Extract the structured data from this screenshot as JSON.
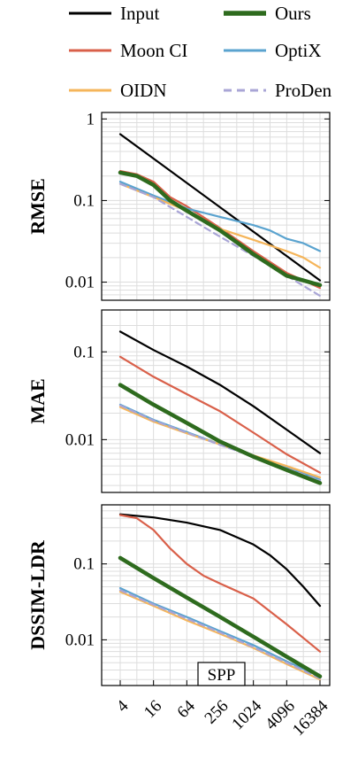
{
  "chart_data": {
    "type": "line",
    "x_scale": "log2",
    "x": [
      4,
      16,
      64,
      256,
      1024,
      4096,
      16384
    ],
    "xtick_labels": [
      "4",
      "16",
      "64",
      "256",
      "1024",
      "4096",
      "16384"
    ],
    "xlabel": "SPP",
    "grid": true,
    "legend": {
      "placement": "top",
      "entries": [
        "Input",
        "Ours",
        "Moon CI",
        "OptiX",
        "OIDN",
        "ProDen"
      ]
    },
    "series_styles": [
      {
        "name": "Input",
        "color": "#000000",
        "dash": "solid",
        "thick": false
      },
      {
        "name": "Ours",
        "color": "#2e6b1e",
        "dash": "solid",
        "thick": true
      },
      {
        "name": "Moon CI",
        "color": "#d9604a",
        "dash": "solid",
        "thick": false
      },
      {
        "name": "OptiX",
        "color": "#5aa3cf",
        "dash": "solid",
        "thick": false
      },
      {
        "name": "OIDN",
        "color": "#f5b55a",
        "dash": "solid",
        "thick": false
      },
      {
        "name": "ProDen",
        "color": "#a9a5d6",
        "dash": "dashed",
        "thick": false
      }
    ],
    "panels": [
      {
        "ylabel": "RMSE",
        "y_scale": "log",
        "ylim": [
          0.006,
          1.2
        ],
        "yticks": [
          1,
          0.1,
          0.01
        ],
        "ytick_labels": [
          "1",
          "0.1",
          "0.01"
        ],
        "series": [
          {
            "name": "Input",
            "x": [
              4,
              16384
            ],
            "values": [
              0.65,
              0.0105
            ]
          },
          {
            "name": "Moon CI",
            "x": [
              4,
              8,
              16,
              32,
              64,
              256,
              1024,
              4096,
              16384
            ],
            "values": [
              0.23,
              0.21,
              0.17,
              0.11,
              0.085,
              0.046,
              0.024,
              0.013,
              0.0085
            ]
          },
          {
            "name": "OptiX",
            "x": [
              4,
              16,
              64,
              256,
              1024,
              2048,
              4096,
              8192,
              16384
            ],
            "values": [
              0.17,
              0.115,
              0.08,
              0.063,
              0.05,
              0.043,
              0.034,
              0.03,
              0.024
            ]
          },
          {
            "name": "OIDN",
            "x": [
              4,
              16,
              64,
              256,
              1024,
              4096,
              8192,
              16384
            ],
            "values": [
              0.16,
              0.11,
              0.075,
              0.045,
              0.033,
              0.024,
              0.02,
              0.015
            ]
          },
          {
            "name": "ProDen",
            "x": [
              4,
              16,
              64,
              256,
              1024,
              4096,
              16384
            ],
            "values": [
              0.16,
              0.11,
              0.063,
              0.036,
              0.021,
              0.012,
              0.0068
            ]
          },
          {
            "name": "Ours",
            "x": [
              4,
              8,
              16,
              32,
              64,
              256,
              1024,
              4096,
              16384
            ],
            "values": [
              0.22,
              0.2,
              0.155,
              0.1,
              0.075,
              0.043,
              0.022,
              0.012,
              0.0092
            ]
          }
        ]
      },
      {
        "ylabel": "MAE",
        "y_scale": "log",
        "ylim": [
          0.0025,
          0.3
        ],
        "yticks": [
          0.1,
          0.01
        ],
        "ytick_labels": [
          "0.1",
          "0.01"
        ],
        "series": [
          {
            "name": "Input",
            "x": [
              4,
              16,
              64,
              256,
              1024,
              4096,
              16384
            ],
            "values": [
              0.17,
              0.105,
              0.068,
              0.042,
              0.024,
              0.013,
              0.007
            ]
          },
          {
            "name": "Moon CI",
            "x": [
              4,
              16,
              64,
              256,
              1024,
              4096,
              16384
            ],
            "values": [
              0.088,
              0.052,
              0.033,
              0.021,
              0.012,
              0.0068,
              0.0042
            ]
          },
          {
            "name": "OptiX",
            "x": [
              4,
              16,
              64,
              256,
              1024,
              4096,
              16384
            ],
            "values": [
              0.025,
              0.0168,
              0.0122,
              0.0088,
              0.0065,
              0.0048,
              0.0035
            ]
          },
          {
            "name": "OIDN",
            "x": [
              4,
              16,
              64,
              256,
              1024,
              4096,
              16384
            ],
            "values": [
              0.0235,
              0.016,
              0.0118,
              0.0088,
              0.0066,
              0.005,
              0.0037
            ]
          },
          {
            "name": "ProDen",
            "x": [
              4,
              16,
              64,
              256,
              1024,
              4096,
              16384
            ],
            "values": [
              0.0245,
              0.0165,
              0.012,
              0.0087,
              0.0064,
              0.0047,
              0.0034
            ]
          },
          {
            "name": "Ours",
            "x": [
              4,
              16,
              64,
              256,
              1024,
              4096,
              16384
            ],
            "values": [
              0.042,
              0.025,
              0.0155,
              0.0095,
              0.0064,
              0.0045,
              0.0032
            ]
          }
        ]
      },
      {
        "ylabel": "DSSIM-LDR",
        "y_scale": "log",
        "ylim": [
          0.0025,
          0.6
        ],
        "yticks": [
          0.1,
          0.01
        ],
        "ytick_labels": [
          "0.1",
          "0.01"
        ],
        "series": [
          {
            "name": "Input",
            "x": [
              4,
              16,
              64,
              256,
              1024,
              2048,
              4096,
              8192,
              16384
            ],
            "values": [
              0.45,
              0.41,
              0.35,
              0.28,
              0.18,
              0.13,
              0.085,
              0.05,
              0.028
            ]
          },
          {
            "name": "Moon CI",
            "x": [
              4,
              8,
              16,
              32,
              64,
              128,
              256,
              1024,
              4096,
              16384
            ],
            "values": [
              0.44,
              0.4,
              0.28,
              0.16,
              0.1,
              0.07,
              0.055,
              0.035,
              0.016,
              0.007
            ]
          },
          {
            "name": "OptiX",
            "x": [
              4,
              16,
              64,
              256,
              1024,
              4096,
              16384
            ],
            "values": [
              0.048,
              0.03,
              0.02,
              0.013,
              0.0085,
              0.0052,
              0.0033
            ]
          },
          {
            "name": "OIDN",
            "x": [
              4,
              16,
              64,
              256,
              1024,
              4096,
              16384
            ],
            "values": [
              0.043,
              0.028,
              0.018,
              0.012,
              0.0078,
              0.0048,
              0.003
            ]
          },
          {
            "name": "ProDen",
            "x": [
              4,
              16,
              64,
              256,
              1024,
              4096,
              16384
            ],
            "values": [
              0.045,
              0.029,
              0.019,
              0.0125,
              0.008,
              0.005,
              0.0031
            ]
          },
          {
            "name": "Ours",
            "x": [
              4,
              16,
              64,
              256,
              1024,
              4096,
              16384
            ],
            "values": [
              0.12,
              0.065,
              0.036,
              0.02,
              0.011,
              0.006,
              0.0033
            ]
          }
        ]
      }
    ]
  }
}
